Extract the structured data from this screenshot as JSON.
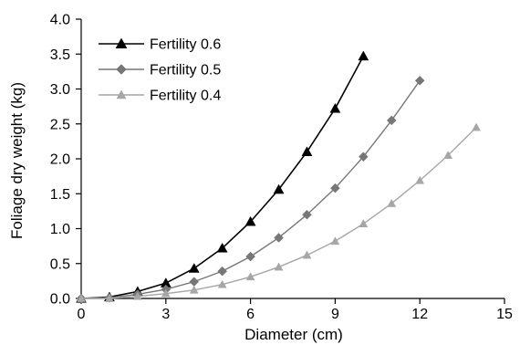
{
  "chart_data": {
    "type": "line",
    "xlabel": "Diameter (cm)",
    "ylabel": "Foliage dry weight (kg)",
    "xlim": [
      0,
      15
    ],
    "ylim": [
      0,
      4.0
    ],
    "xticks": [
      0,
      3,
      6,
      9,
      12,
      15
    ],
    "yticks": [
      0,
      0.5,
      1.0,
      1.5,
      2.0,
      2.5,
      3.0,
      3.5,
      4.0
    ],
    "ytick_labels": [
      "0.0",
      "0.5",
      "1.0",
      "1.5",
      "2.0",
      "2.5",
      "3.0",
      "3.5",
      "4.0"
    ],
    "grid": false,
    "legend_position": "top-left",
    "series": [
      {
        "name": "Fertility 0.6",
        "color": "#000000",
        "marker": "triangle",
        "x": [
          0,
          1,
          2,
          3,
          4,
          5,
          6,
          7,
          8,
          9,
          10
        ],
        "y": [
          0.0,
          0.02,
          0.1,
          0.22,
          0.43,
          0.72,
          1.1,
          1.56,
          2.1,
          2.72,
          3.47
        ]
      },
      {
        "name": "Fertility 0.5",
        "color": "#777777",
        "marker": "diamond",
        "x": [
          0,
          1,
          2,
          3,
          4,
          5,
          6,
          7,
          8,
          9,
          10,
          11,
          12
        ],
        "y": [
          0.0,
          0.01,
          0.06,
          0.13,
          0.24,
          0.39,
          0.6,
          0.87,
          1.2,
          1.58,
          2.03,
          2.55,
          3.12
        ]
      },
      {
        "name": "Fertility 0.4",
        "color": "#a6a6a6",
        "marker": "triangle",
        "x": [
          0,
          1,
          2,
          3,
          4,
          5,
          6,
          7,
          8,
          9,
          10,
          11,
          12,
          13,
          14
        ],
        "y": [
          0.0,
          0.0,
          0.03,
          0.07,
          0.12,
          0.2,
          0.31,
          0.45,
          0.62,
          0.82,
          1.07,
          1.36,
          1.69,
          2.05,
          2.45
        ]
      }
    ]
  }
}
